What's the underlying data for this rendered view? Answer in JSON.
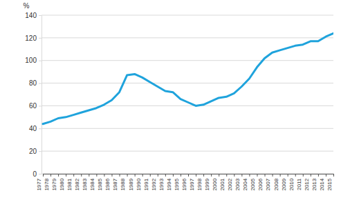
{
  "chart_data": {
    "type": "line",
    "y_label": "%",
    "categories": [
      "1977",
      "1978",
      "1979",
      "1980",
      "1981",
      "1982",
      "1983",
      "1984",
      "1985",
      "1986",
      "1987",
      "1988",
      "1989",
      "1990",
      "1991",
      "1992",
      "1993",
      "1994",
      "1995",
      "1996",
      "1997",
      "1998",
      "1999",
      "2000",
      "2001",
      "2002",
      "2003",
      "2004",
      "2005",
      "2006",
      "2007",
      "2008",
      "2009",
      "2010",
      "2011",
      "2012",
      "2013",
      "2014",
      "2015"
    ],
    "values": [
      44,
      46,
      49,
      50,
      52,
      54,
      56,
      58,
      61,
      65,
      72,
      87,
      88,
      85,
      81,
      77,
      73,
      72,
      66,
      63,
      60,
      61,
      64,
      67,
      68,
      71,
      77,
      84,
      94,
      102,
      107,
      109,
      111,
      113,
      114,
      117,
      117,
      121,
      124
    ],
    "color": "#1fa3dc",
    "ylim": [
      0,
      140
    ],
    "yticks": [
      0,
      20,
      40,
      60,
      80,
      100,
      120,
      140
    ],
    "grid": true
  }
}
